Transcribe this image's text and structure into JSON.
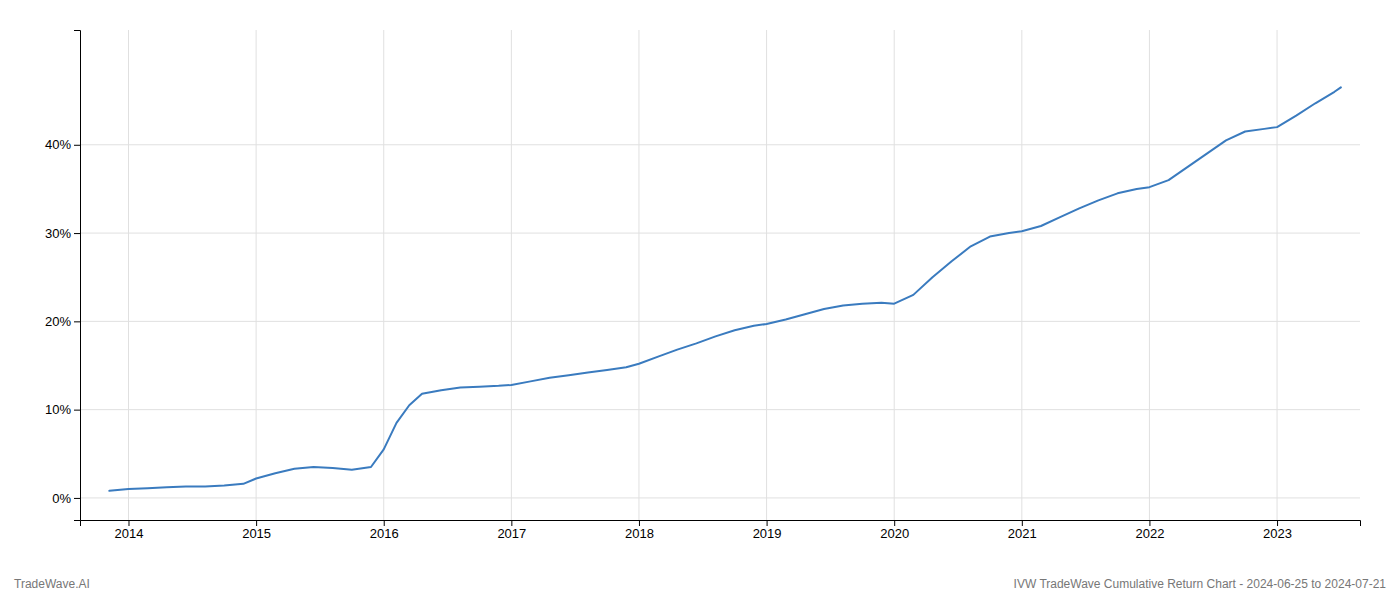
{
  "chart_data": {
    "type": "line",
    "x": [
      2013.85,
      2014.0,
      2014.15,
      2014.3,
      2014.45,
      2014.6,
      2014.75,
      2014.9,
      2015.0,
      2015.15,
      2015.3,
      2015.45,
      2015.6,
      2015.75,
      2015.9,
      2016.0,
      2016.1,
      2016.2,
      2016.3,
      2016.45,
      2016.6,
      2016.75,
      2016.9,
      2017.0,
      2017.15,
      2017.3,
      2017.45,
      2017.6,
      2017.75,
      2017.9,
      2018.0,
      2018.15,
      2018.3,
      2018.45,
      2018.6,
      2018.75,
      2018.9,
      2019.0,
      2019.15,
      2019.3,
      2019.45,
      2019.6,
      2019.75,
      2019.9,
      2020.0,
      2020.15,
      2020.3,
      2020.45,
      2020.6,
      2020.75,
      2020.9,
      2021.0,
      2021.15,
      2021.3,
      2021.45,
      2021.6,
      2021.75,
      2021.9,
      2022.0,
      2022.15,
      2022.3,
      2022.45,
      2022.6,
      2022.75,
      2022.9,
      2023.0,
      2023.15,
      2023.3,
      2023.45,
      2023.5
    ],
    "values": [
      0.008,
      0.01,
      0.011,
      0.012,
      0.013,
      0.013,
      0.014,
      0.016,
      0.022,
      0.028,
      0.033,
      0.035,
      0.034,
      0.032,
      0.035,
      0.055,
      0.085,
      0.105,
      0.118,
      0.122,
      0.125,
      0.126,
      0.127,
      0.128,
      0.132,
      0.136,
      0.139,
      0.142,
      0.145,
      0.148,
      0.152,
      0.16,
      0.168,
      0.175,
      0.183,
      0.19,
      0.195,
      0.197,
      0.202,
      0.208,
      0.214,
      0.218,
      0.22,
      0.221,
      0.22,
      0.23,
      0.25,
      0.268,
      0.285,
      0.296,
      0.3,
      0.302,
      0.308,
      0.318,
      0.328,
      0.337,
      0.345,
      0.35,
      0.352,
      0.36,
      0.375,
      0.39,
      0.405,
      0.415,
      0.418,
      0.42,
      0.433,
      0.447,
      0.46,
      0.465
    ],
    "color": "#3a7bbf",
    "xlim": [
      2013.62,
      2023.65
    ],
    "ylim": [
      -0.025,
      0.53
    ],
    "xticks": [
      2014,
      2015,
      2016,
      2017,
      2018,
      2019,
      2020,
      2021,
      2022,
      2023
    ],
    "yticks": [
      {
        "value": 0.0,
        "label": "0%"
      },
      {
        "value": 0.1,
        "label": "10%"
      },
      {
        "value": 0.2,
        "label": "20%"
      },
      {
        "value": 0.3,
        "label": "30%"
      },
      {
        "value": 0.4,
        "label": "40%"
      }
    ],
    "grid": true,
    "annotations": [
      "TradeWave.AI",
      "IVW TradeWave Cumulative Return Chart - 2024-06-25 to 2024-07-21"
    ]
  }
}
